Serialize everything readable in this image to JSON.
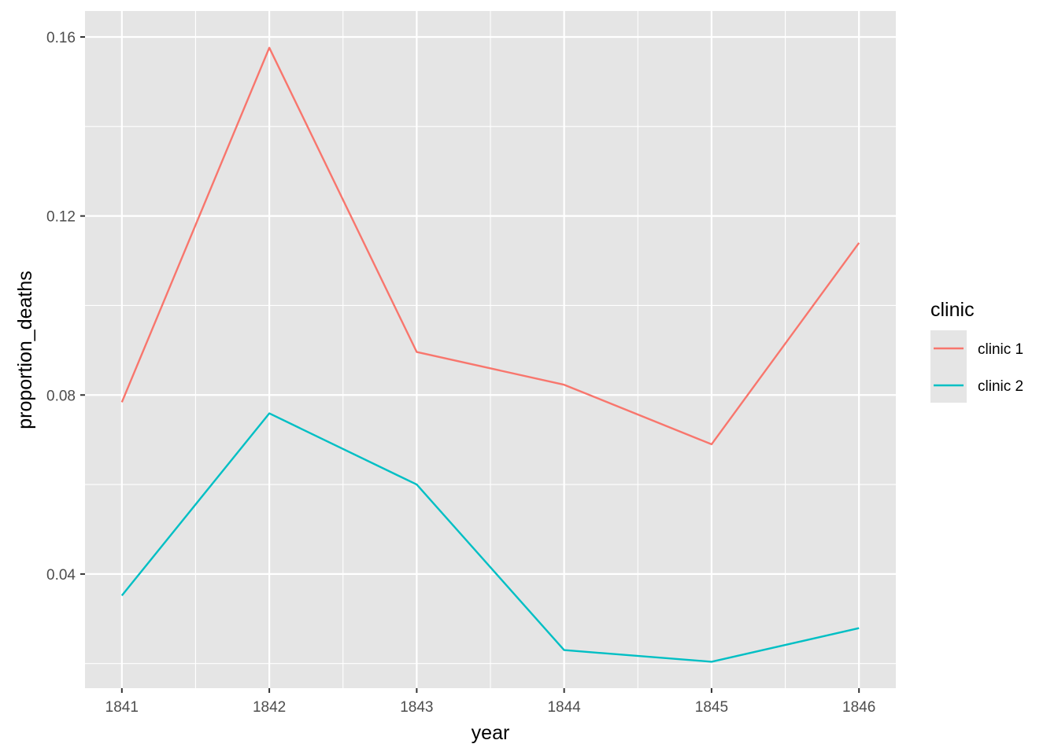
{
  "chart_data": {
    "type": "line",
    "x": [
      1841,
      1842,
      1843,
      1844,
      1845,
      1846
    ],
    "x_tick_labels": [
      "1841",
      "1842",
      "1843",
      "1844",
      "1845",
      "1846"
    ],
    "y_ticks": [
      0.04,
      0.08,
      0.12,
      0.16
    ],
    "y_tick_labels": [
      "0.04",
      "0.08",
      "0.12",
      "0.16"
    ],
    "xlabel": "year",
    "ylabel": "proportion_deaths",
    "xlim": [
      1840.75,
      1846.25
    ],
    "ylim": [
      0.0145,
      0.1658
    ],
    "grid": true,
    "background": "#e5e5e5",
    "legend": {
      "title": "clinic",
      "placement": "right"
    },
    "series": [
      {
        "name": "clinic 1",
        "color": "#f8766d",
        "values": [
          0.0784,
          0.1576,
          0.0896,
          0.0823,
          0.069,
          0.114
        ]
      },
      {
        "name": "clinic 2",
        "color": "#00bfc4",
        "values": [
          0.0352,
          0.0759,
          0.06,
          0.023,
          0.0204,
          0.0279
        ]
      }
    ]
  }
}
